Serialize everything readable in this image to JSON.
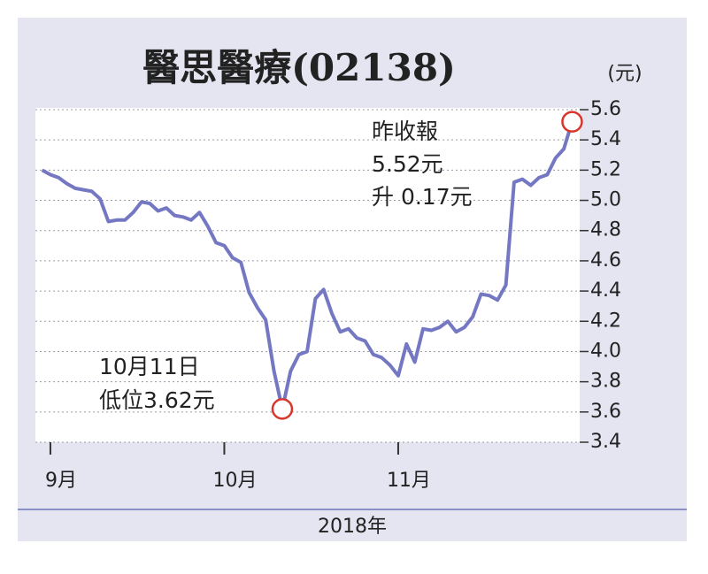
{
  "chart_data": {
    "type": "line",
    "title": "醫思醫療(02138)",
    "y_unit": "(元)",
    "x_label": "2018年",
    "categories": [
      null,
      "9月",
      null,
      null,
      null,
      null,
      null,
      null,
      null,
      null,
      null,
      null,
      null,
      null,
      null,
      null,
      null,
      null,
      null,
      null,
      null,
      null,
      "10月",
      null,
      null,
      null,
      null,
      null,
      null,
      null,
      null,
      null,
      null,
      null,
      null,
      null,
      null,
      null,
      null,
      null,
      null,
      null,
      null,
      "11月",
      null,
      null,
      null,
      null,
      null,
      null,
      null,
      null,
      null,
      null,
      null,
      null,
      null,
      null,
      null,
      null,
      null,
      null,
      null,
      null,
      null
    ],
    "series": [
      {
        "color": "#7478c2",
        "values": [
          5.2,
          5.17,
          5.15,
          5.11,
          5.08,
          5.07,
          5.06,
          5.01,
          4.86,
          4.87,
          4.87,
          4.92,
          4.99,
          4.98,
          4.93,
          4.95,
          4.9,
          4.89,
          4.87,
          4.92,
          4.83,
          4.72,
          4.7,
          4.62,
          4.59,
          4.39,
          4.29,
          4.21,
          3.87,
          3.62,
          3.87,
          3.98,
          4.0,
          4.35,
          4.41,
          4.25,
          4.13,
          4.15,
          4.09,
          4.07,
          3.98,
          3.96,
          3.91,
          3.84,
          4.05,
          3.93,
          4.15,
          4.14,
          4.16,
          4.2,
          4.13,
          4.16,
          4.23,
          4.38,
          4.37,
          4.34,
          4.44,
          5.12,
          5.14,
          5.1,
          5.15,
          5.17,
          5.28,
          5.34,
          5.52
        ]
      }
    ],
    "ylim": [
      3.4,
      5.6
    ],
    "yticks": [
      3.4,
      3.6,
      3.8,
      {
        "value": 4,
        "label": "4.0"
      },
      4.2,
      4.4,
      4.6,
      4.8,
      {
        "value": 5,
        "label": "5.0"
      },
      5.2,
      5.4,
      5.6
    ],
    "grid": true,
    "annotations": [
      {
        "point": 64,
        "color": "#d9362b",
        "lines": [
          "昨收報",
          "5.52元",
          "升 0.17元"
        ]
      },
      {
        "point": 29,
        "color": "#d9362b",
        "lines": [
          "10月11日",
          "低位3.62元"
        ]
      }
    ]
  }
}
